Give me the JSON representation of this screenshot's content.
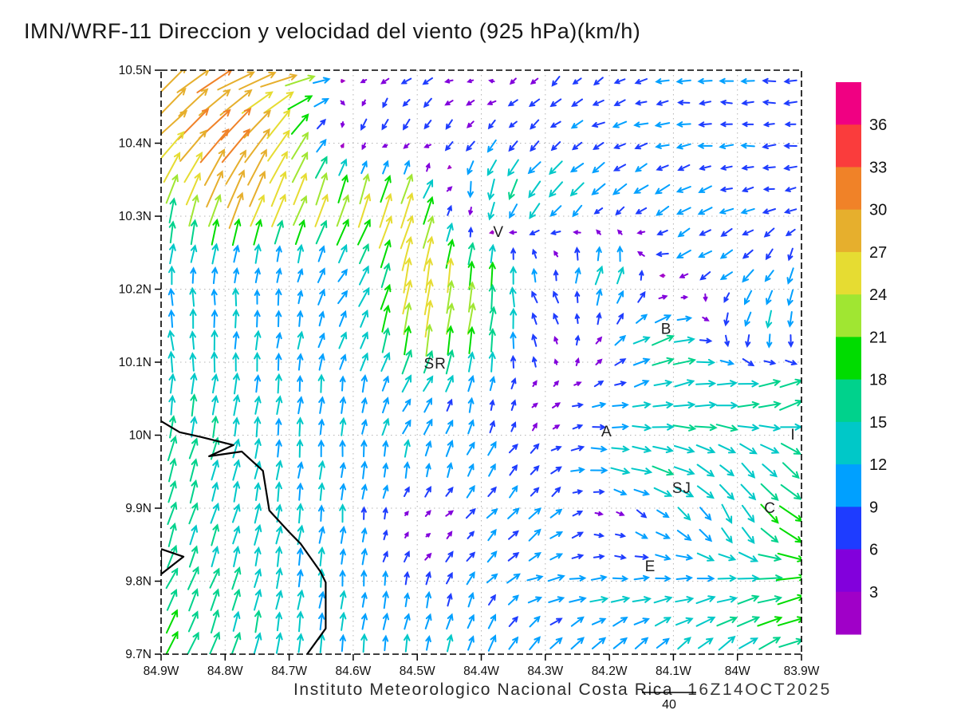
{
  "header": {
    "title": "IMN/WRF-11 Direccion y velocidad del viento (925 hPa)(km/h)"
  },
  "footer": {
    "credit": "Instituto Meteorologico Nacional Costa Rica",
    "timestamp": "16Z14OCT2025",
    "reference_vector_label": "40",
    "reference_vector_value": 40
  },
  "chart_data": {
    "type": "vector_field",
    "title": "IMN/WRF-11 Direccion y velocidad del viento (925 hPa)(km/h)",
    "units": "km/h",
    "pressure_level": "925 hPa",
    "x_axis": {
      "tick_labels": [
        "84.9W",
        "84.8W",
        "84.7W",
        "84.6W",
        "84.5W",
        "84.4W",
        "84.3W",
        "84.2W",
        "84.1W",
        "84W",
        "83.9W"
      ],
      "range_deg_west": [
        84.9,
        83.9
      ]
    },
    "y_axis": {
      "tick_labels": [
        "10.5N",
        "10.4N",
        "10.3N",
        "10.2N",
        "10.1N",
        "10N",
        "9.9N",
        "9.8N",
        "9.7N"
      ],
      "range_deg_north": [
        9.7,
        10.5
      ]
    },
    "grid": true,
    "legend_position": "right-colorbar",
    "colorbar": {
      "boundary_labels_top_to_bottom": [
        36,
        33,
        30,
        27,
        24,
        21,
        18,
        15,
        12,
        9,
        6,
        3
      ],
      "colors_top_to_bottom": [
        "#F00082",
        "#FA3C3C",
        "#F08228",
        "#E6AF2D",
        "#E6DC32",
        "#A0E632",
        "#00DC00",
        "#00D28C",
        "#00C8C8",
        "#00A0FF",
        "#1E3CFF",
        "#8200DC",
        "#A000C8"
      ],
      "speed_thresholds_kmh": [
        3,
        6,
        9,
        12,
        15,
        18,
        21,
        24,
        27,
        30,
        33,
        36
      ],
      "colors_low_to_high": [
        "#A000C8",
        "#8200DC",
        "#1E3CFF",
        "#00A0FF",
        "#00C8C8",
        "#00D28C",
        "#00DC00",
        "#A0E632",
        "#E6DC32",
        "#E6AF2D",
        "#F08228",
        "#FA3C3C",
        "#F00082"
      ]
    },
    "stations": [
      {
        "label": "V",
        "fx": 0.527,
        "fy": 0.277
      },
      {
        "label": "SR",
        "fx": 0.428,
        "fy": 0.503
      },
      {
        "label": "B",
        "fx": 0.789,
        "fy": 0.443
      },
      {
        "label": "A",
        "fx": 0.696,
        "fy": 0.619
      },
      {
        "label": "SJ",
        "fx": 0.813,
        "fy": 0.716
      },
      {
        "label": "C",
        "fx": 0.951,
        "fy": 0.75
      },
      {
        "label": "E",
        "fx": 0.764,
        "fy": 0.85
      },
      {
        "label": "I",
        "fx": 0.987,
        "fy": 0.624
      }
    ],
    "coastline": {
      "main": [
        [
          0.0,
          0.601
        ],
        [
          0.029,
          0.62
        ],
        [
          0.062,
          0.628
        ],
        [
          0.113,
          0.642
        ],
        [
          0.075,
          0.661
        ],
        [
          0.126,
          0.653
        ],
        [
          0.134,
          0.661
        ],
        [
          0.159,
          0.686
        ],
        [
          0.169,
          0.754
        ],
        [
          0.2,
          0.791
        ],
        [
          0.218,
          0.811
        ],
        [
          0.249,
          0.859
        ],
        [
          0.257,
          0.877
        ],
        [
          0.257,
          0.956
        ],
        [
          0.228,
          1.0
        ]
      ],
      "islet": [
        [
          0.0,
          0.82
        ],
        [
          0.035,
          0.833
        ],
        [
          0.0,
          0.863
        ],
        [
          0.0,
          0.82
        ]
      ]
    },
    "wind_grid": {
      "description": "Coarse sampled wind field (u eastward, v northward, km/h). 10 rows top(10.5N) to bottom(9.7N), 11 cols left(84.9W) to right(83.9W). Rendered arrows are bilinear-interpolated from this grid.",
      "nx": 11,
      "ny": 10,
      "uv": [
        [
          [
            20,
            21
          ],
          [
            26,
            13
          ],
          [
            27,
            5
          ],
          [
            -2,
            0
          ],
          [
            -6,
            -4
          ],
          [
            -2,
            2
          ],
          [
            -6,
            -6
          ],
          [
            -7,
            -4
          ],
          [
            -9,
            -1
          ],
          [
            -8,
            0
          ],
          [
            -8,
            0
          ]
        ],
        [
          [
            20,
            20
          ],
          [
            22,
            24
          ],
          [
            14,
            22
          ],
          [
            -3,
            -9
          ],
          [
            -5,
            -7
          ],
          [
            -6,
            -6
          ],
          [
            -6,
            -5
          ],
          [
            -8,
            -3
          ],
          [
            -9,
            -1
          ],
          [
            -8,
            0
          ],
          [
            -8,
            -1
          ]
        ],
        [
          [
            3,
            18
          ],
          [
            10,
            28
          ],
          [
            10,
            24
          ],
          [
            8,
            26
          ],
          [
            10,
            25
          ],
          [
            -3,
            -18
          ],
          [
            -10,
            -12
          ],
          [
            -8,
            -8
          ],
          [
            -9,
            -6
          ],
          [
            -8,
            -2
          ],
          [
            -8,
            -1
          ]
        ],
        [
          [
            1,
            12
          ],
          [
            1,
            10
          ],
          [
            1,
            9
          ],
          [
            7,
            9
          ],
          [
            5,
            27
          ],
          [
            2,
            20
          ],
          [
            -2,
            6
          ],
          [
            5,
            16
          ],
          [
            -9,
            -4
          ],
          [
            -8,
            -6
          ],
          [
            -2,
            -10
          ]
        ],
        [
          [
            -3,
            13
          ],
          [
            0,
            13
          ],
          [
            1,
            11
          ],
          [
            6,
            10
          ],
          [
            3,
            26
          ],
          [
            3,
            20
          ],
          [
            -5,
            6
          ],
          [
            3,
            6
          ],
          [
            18,
            6
          ],
          [
            -4,
            -11
          ],
          [
            -2,
            -12
          ]
        ],
        [
          [
            1,
            14
          ],
          [
            2,
            14
          ],
          [
            1,
            12
          ],
          [
            1,
            11
          ],
          [
            8,
            8
          ],
          [
            1,
            9
          ],
          [
            3,
            2
          ],
          [
            8,
            2
          ],
          [
            14,
            3
          ],
          [
            17,
            2
          ],
          [
            18,
            10
          ]
        ],
        [
          [
            5,
            17
          ],
          [
            4,
            14
          ],
          [
            1,
            12
          ],
          [
            1,
            11
          ],
          [
            2,
            12
          ],
          [
            5,
            9
          ],
          [
            5,
            5
          ],
          [
            13,
            -2
          ],
          [
            16,
            -5
          ],
          [
            10,
            -8
          ],
          [
            12,
            -10
          ]
        ],
        [
          [
            5,
            16
          ],
          [
            4,
            13
          ],
          [
            2,
            13
          ],
          [
            1,
            11
          ],
          [
            3,
            0
          ],
          [
            6,
            6
          ],
          [
            8,
            8
          ],
          [
            3,
            -2
          ],
          [
            9,
            -7
          ],
          [
            6,
            -14
          ],
          [
            18,
            -12
          ]
        ],
        [
          [
            8,
            15
          ],
          [
            5,
            15
          ],
          [
            2,
            13
          ],
          [
            1,
            11
          ],
          [
            2,
            10
          ],
          [
            5,
            8
          ],
          [
            11,
            2
          ],
          [
            12,
            1
          ],
          [
            12,
            2
          ],
          [
            15,
            3
          ],
          [
            22,
            5
          ]
        ],
        [
          [
            8,
            16
          ],
          [
            5,
            15
          ],
          [
            2,
            14
          ],
          [
            2,
            12
          ],
          [
            2,
            11
          ],
          [
            3,
            11
          ],
          [
            6,
            9
          ],
          [
            9,
            9
          ],
          [
            9,
            8
          ],
          [
            12,
            10
          ],
          [
            16,
            6
          ]
        ]
      ]
    }
  }
}
